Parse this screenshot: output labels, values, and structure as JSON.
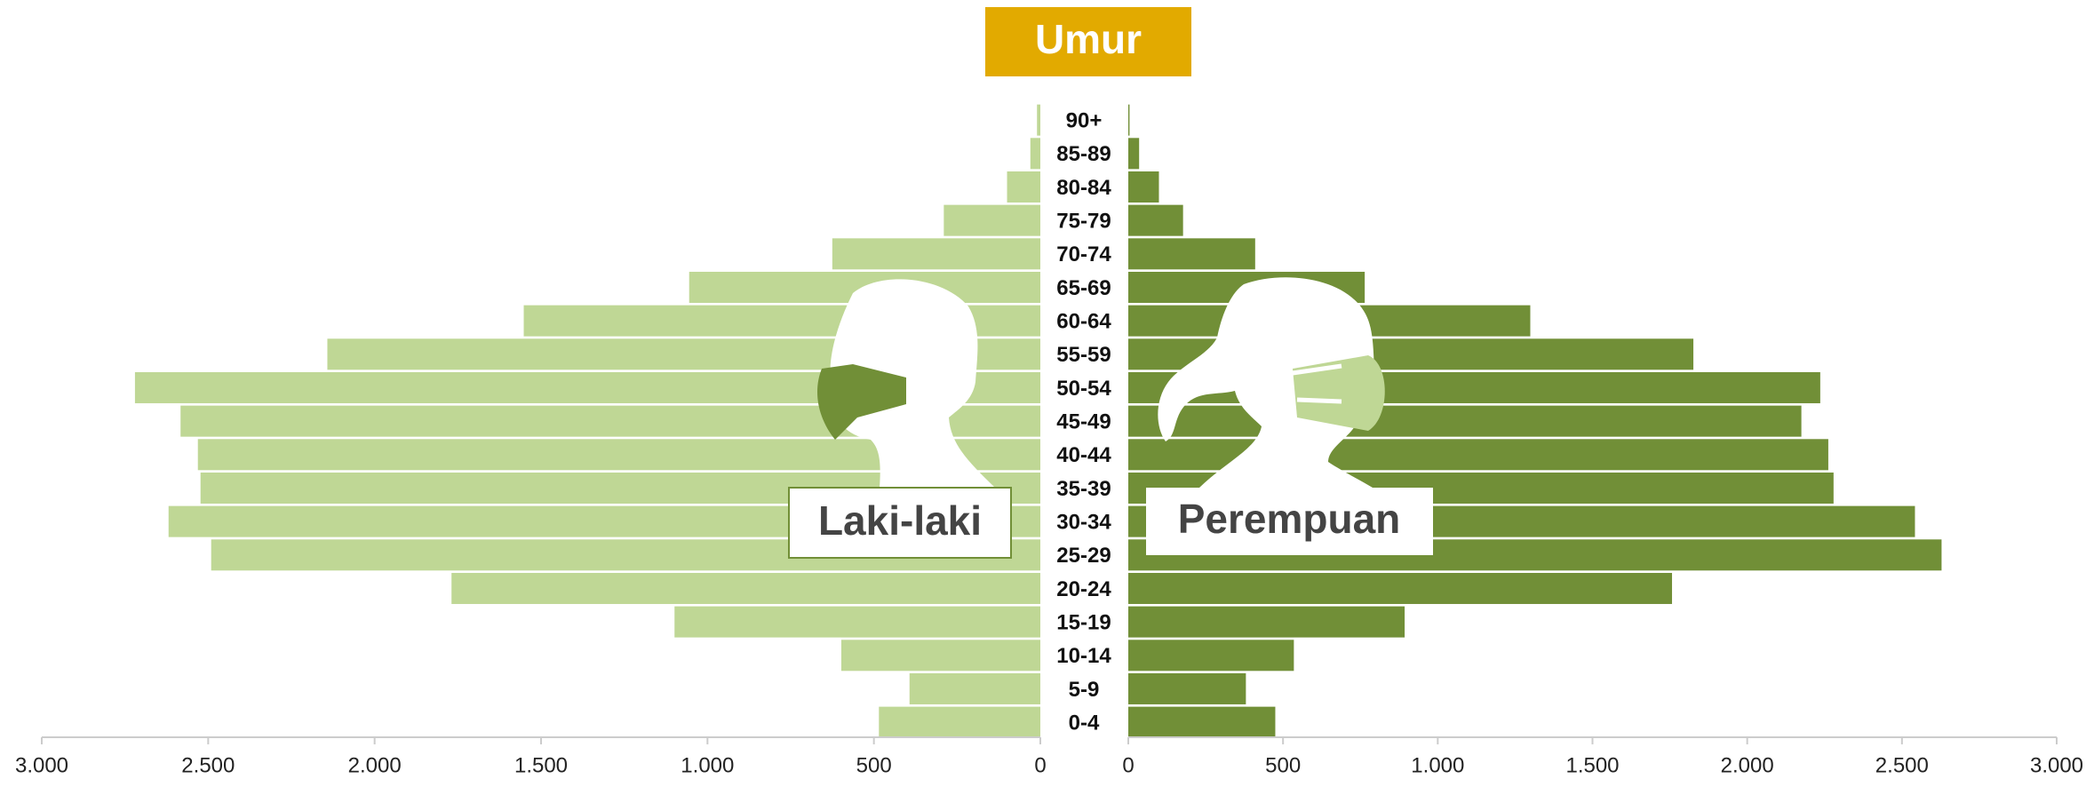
{
  "chart_data": {
    "type": "population-pyramid",
    "title": "Umur",
    "categories": [
      "0-4",
      "5-9",
      "10-14",
      "15-19",
      "20-24",
      "25-29",
      "30-34",
      "35-39",
      "40-44",
      "45-49",
      "50-54",
      "55-59",
      "60-64",
      "65-69",
      "70-74",
      "75-79",
      "80-84",
      "85-89",
      "90+"
    ],
    "series": [
      {
        "name": "Laki-laki",
        "color": "#bfd795",
        "side": "left",
        "values": [
          485,
          393,
          598,
          1099,
          1769,
          2491,
          2619,
          2523,
          2531,
          2583,
          2720,
          2142,
          1552,
          1055,
          625,
          290,
          100,
          30,
          10
        ]
      },
      {
        "name": "Perempuan",
        "color": "#718f37",
        "side": "right",
        "values": [
          475,
          380,
          535,
          893,
          1757,
          2628,
          2542,
          2279,
          2262,
          2175,
          2236,
          1826,
          1299,
          764,
          410,
          177,
          99,
          35,
          4
        ]
      }
    ],
    "xlim": [
      0,
      3000
    ],
    "xticks": [
      0,
      500,
      {
        "value": 1000,
        "label": "1.000"
      },
      {
        "value": 1500,
        "label": "1.500"
      },
      {
        "value": 2000,
        "label": "2.000"
      },
      {
        "value": 2500,
        "label": "2.500"
      },
      {
        "value": 3000,
        "label": "3.000"
      }
    ]
  }
}
